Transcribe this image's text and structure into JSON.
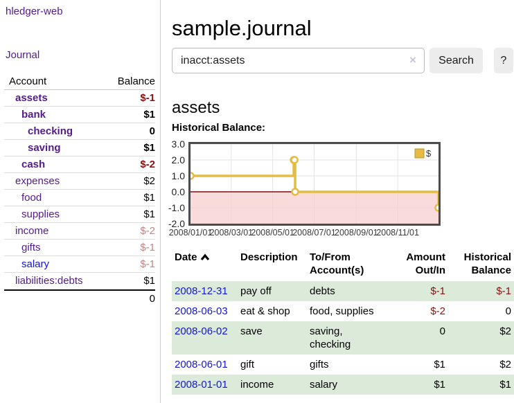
{
  "app": {
    "title": "hledger-web"
  },
  "colors": {
    "brand_purple": "#551a8b",
    "link_blue": "#1414e0",
    "negative_red": "#8b1111",
    "negative_faded": "#c28585",
    "row_stripe_green": "#dcead9",
    "chart_gold": "#e5bb44",
    "chart_gold_border": "#b8952f",
    "chart_negative_bg": "#f8cdcd",
    "chart_zero_line": "#7d0b0b",
    "button_bg": "#ececec"
  },
  "sidebar": {
    "journal_link": "Journal",
    "columns": {
      "account": "Account",
      "balance": "Balance"
    },
    "accounts": [
      {
        "name": "assets",
        "balance": "$-1",
        "indent": 1,
        "bold": true,
        "neg": "full"
      },
      {
        "name": "bank",
        "balance": "$1",
        "indent": 2,
        "bold": true,
        "neg": "none"
      },
      {
        "name": "checking",
        "balance": "0",
        "indent": 3,
        "bold": true,
        "neg": "none"
      },
      {
        "name": "saving",
        "balance": "$1",
        "indent": 3,
        "bold": true,
        "neg": "none"
      },
      {
        "name": "cash",
        "balance": "$-2",
        "indent": 2,
        "bold": true,
        "neg": "full"
      },
      {
        "name": "expenses",
        "balance": "$2",
        "indent": 1,
        "bold": false,
        "neg": "none"
      },
      {
        "name": "food",
        "balance": "$1",
        "indent": 2,
        "bold": false,
        "neg": "none"
      },
      {
        "name": "supplies",
        "balance": "$1",
        "indent": 2,
        "bold": false,
        "neg": "none"
      },
      {
        "name": "income",
        "balance": "$-2",
        "indent": 1,
        "bold": false,
        "neg": "faded"
      },
      {
        "name": "gifts",
        "balance": "$-1",
        "indent": 2,
        "bold": false,
        "neg": "faded"
      },
      {
        "name": "salary",
        "balance": "$-1",
        "indent": 2,
        "bold": false,
        "neg": "faded",
        "unvisited": true
      },
      {
        "name": "liabilities:debts",
        "balance": "$1",
        "indent": 1,
        "bold": false,
        "neg": "none"
      }
    ],
    "total": "0"
  },
  "header": {
    "title": "sample.journal"
  },
  "search": {
    "value": "inacct:assets",
    "clear_icon": "×",
    "button": "Search",
    "help": "?"
  },
  "account_page": {
    "heading": "assets",
    "chart_label": "Historical Balance:"
  },
  "chart_data": {
    "type": "line",
    "step": true,
    "grid": true,
    "legend": "$",
    "legend_position": "top-right",
    "x_range": [
      "2008-01-01",
      "2008-12-31"
    ],
    "ylim": [
      -2,
      3
    ],
    "y_ticks": [
      "3.0",
      "2.0",
      "1.0",
      "0.0",
      "-1.0",
      "-2.0"
    ],
    "x_ticks": [
      "2008/01/01",
      "2008/03/01",
      "2008/05/01",
      "2008/07/01",
      "2008/09/01",
      "2008/11/01"
    ],
    "series": [
      {
        "name": "$",
        "points": [
          [
            "2008-01-01",
            1
          ],
          [
            "2008-06-01",
            2
          ],
          [
            "2008-06-02",
            2
          ],
          [
            "2008-06-03",
            0
          ],
          [
            "2008-12-31",
            -1
          ]
        ]
      }
    ]
  },
  "register": {
    "headers": {
      "date": "Date",
      "description": "Description",
      "accounts": "To/From\nAccount(s)",
      "amount": "Amount\nOut/In",
      "balance": "Historical\nBalance"
    },
    "rows": [
      {
        "date": "2008-12-31",
        "description": "pay off",
        "accounts": "debts",
        "amount": "$-1",
        "amount_neg": true,
        "balance": "$-1",
        "balance_neg": true
      },
      {
        "date": "2008-06-03",
        "description": "eat & shop",
        "accounts": "food, supplies",
        "amount": "$-2",
        "amount_neg": true,
        "balance": "0",
        "balance_neg": false
      },
      {
        "date": "2008-06-02",
        "description": "save",
        "accounts": "saving,\nchecking",
        "amount": "0",
        "amount_neg": false,
        "balance": "$2",
        "balance_neg": false
      },
      {
        "date": "2008-06-01",
        "description": "gift",
        "accounts": "gifts",
        "amount": "$1",
        "amount_neg": false,
        "balance": "$2",
        "balance_neg": false
      },
      {
        "date": "2008-01-01",
        "description": "income",
        "accounts": "salary",
        "amount": "$1",
        "amount_neg": false,
        "balance": "$1",
        "balance_neg": false
      }
    ]
  }
}
